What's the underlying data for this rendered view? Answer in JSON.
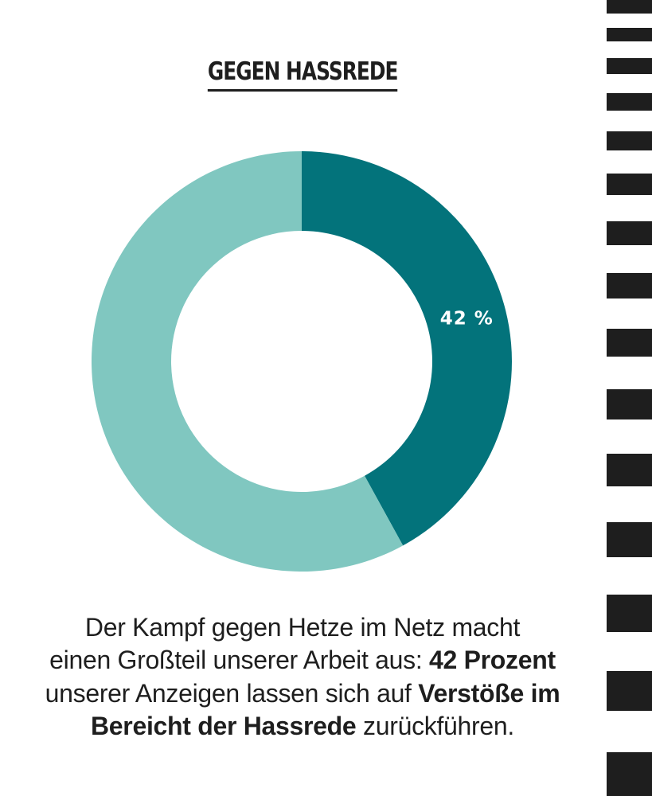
{
  "title": "GEGEN HASSREDE",
  "chart_data": {
    "type": "pie",
    "variant": "donut",
    "slices": [
      {
        "label": "42 %",
        "value": 42,
        "color": "#03737b"
      },
      {
        "label": "",
        "value": 58,
        "color": "#80c7c0"
      }
    ]
  },
  "caption": {
    "line1": "Der Kampf gegen Hetze im Netz macht",
    "line2_pre": "einen Großteil unserer Arbeit aus: ",
    "line2_bold": "42 Prozent",
    "line3_pre": "unserer Anzeigen lassen sich auf ",
    "line3_bold": "Verstöße im",
    "line4_bold": "Bereicht der Hassrede",
    "line4_post": " zurückführen."
  }
}
